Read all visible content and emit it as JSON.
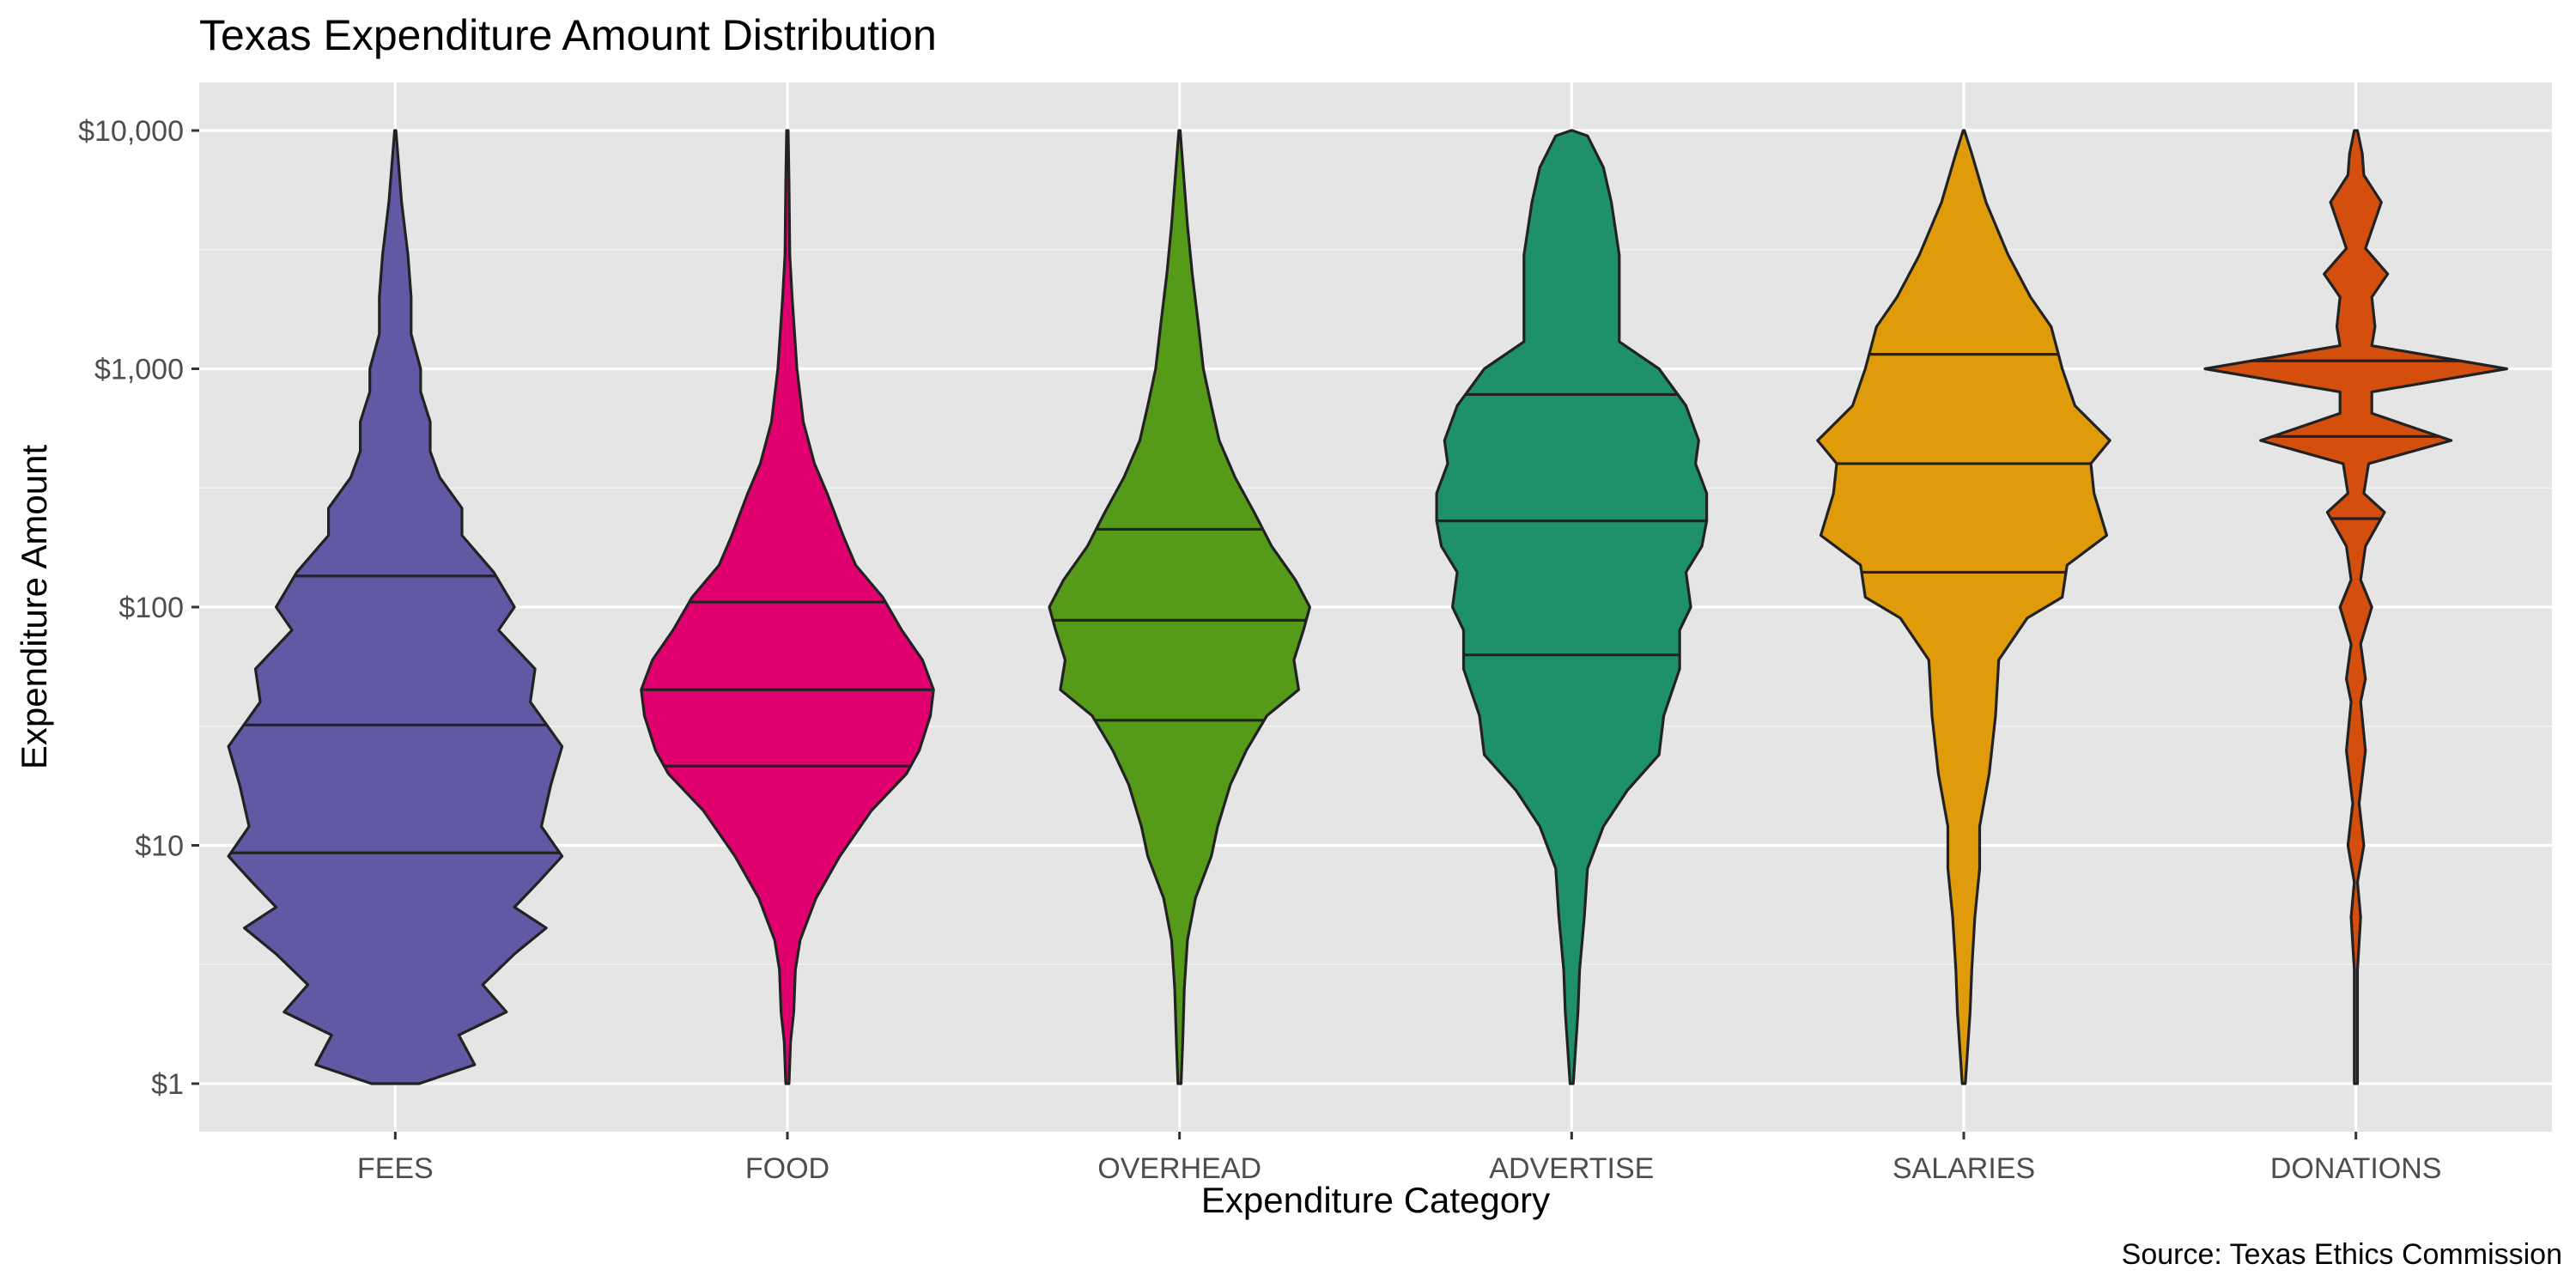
{
  "chart_data": {
    "type": "violin",
    "title": "Texas Expenditure Amount Distribution",
    "xlabel": "Expenditure Category",
    "ylabel": "Expenditure Amount",
    "caption": "Source: Texas Ethics Commission",
    "y_scale": "log10",
    "ylim": [
      1,
      10000
    ],
    "y_ticks": [
      1,
      10,
      100,
      1000,
      10000
    ],
    "y_tick_labels": [
      "$1",
      "$10",
      "$100",
      "$1,000",
      "$10,000"
    ],
    "grid": true,
    "legend": "none",
    "categories": [
      "FEES",
      "FOOD",
      "OVERHEAD",
      "ADVERTISE",
      "SALARIES",
      "DONATIONS"
    ],
    "series": [
      {
        "category": "FEES",
        "color": "#6159a4",
        "quantiles": [
          9.3,
          32,
          135
        ],
        "density": [
          [
            1,
            0.15
          ],
          [
            1.2,
            0.5
          ],
          [
            1.6,
            0.4
          ],
          [
            2,
            0.7
          ],
          [
            2.6,
            0.55
          ],
          [
            3.5,
            0.75
          ],
          [
            4.5,
            0.95
          ],
          [
            5.5,
            0.75
          ],
          [
            7,
            0.9
          ],
          [
            9,
            1.05
          ],
          [
            12,
            0.92
          ],
          [
            18,
            0.98
          ],
          [
            26,
            1.05
          ],
          [
            40,
            0.85
          ],
          [
            55,
            0.88
          ],
          [
            80,
            0.65
          ],
          [
            100,
            0.75
          ],
          [
            140,
            0.62
          ],
          [
            200,
            0.42
          ],
          [
            260,
            0.42
          ],
          [
            350,
            0.28
          ],
          [
            450,
            0.22
          ],
          [
            600,
            0.22
          ],
          [
            800,
            0.16
          ],
          [
            1000,
            0.16
          ],
          [
            1400,
            0.1
          ],
          [
            2000,
            0.1
          ],
          [
            3000,
            0.08
          ],
          [
            5000,
            0.04
          ],
          [
            10000,
            0
          ]
        ]
      },
      {
        "category": "FOOD",
        "color": "#e0006e",
        "quantiles": [
          21.5,
          45,
          105
        ],
        "density": [
          [
            1,
            0.01
          ],
          [
            1.5,
            0.02
          ],
          [
            2,
            0.04
          ],
          [
            3,
            0.05
          ],
          [
            4,
            0.08
          ],
          [
            6,
            0.18
          ],
          [
            9,
            0.33
          ],
          [
            14,
            0.53
          ],
          [
            20,
            0.75
          ],
          [
            25,
            0.83
          ],
          [
            35,
            0.9
          ],
          [
            45,
            0.92
          ],
          [
            60,
            0.85
          ],
          [
            80,
            0.72
          ],
          [
            110,
            0.6
          ],
          [
            150,
            0.43
          ],
          [
            200,
            0.35
          ],
          [
            300,
            0.25
          ],
          [
            400,
            0.17
          ],
          [
            600,
            0.1
          ],
          [
            1000,
            0.06
          ],
          [
            2000,
            0.03
          ],
          [
            3000,
            0.015
          ],
          [
            6000,
            0.01
          ],
          [
            10000,
            0.005
          ]
        ]
      },
      {
        "category": "OVERHEAD",
        "color": "#559a18",
        "quantiles": [
          33.5,
          88,
          212
        ],
        "density": [
          [
            1,
            0.01
          ],
          [
            1.5,
            0.02
          ],
          [
            2.5,
            0.03
          ],
          [
            4,
            0.05
          ],
          [
            6,
            0.1
          ],
          [
            9,
            0.2
          ],
          [
            12,
            0.24
          ],
          [
            18,
            0.32
          ],
          [
            25,
            0.42
          ],
          [
            35,
            0.55
          ],
          [
            45,
            0.75
          ],
          [
            60,
            0.72
          ],
          [
            80,
            0.78
          ],
          [
            100,
            0.82
          ],
          [
            130,
            0.73
          ],
          [
            180,
            0.58
          ],
          [
            250,
            0.47
          ],
          [
            350,
            0.35
          ],
          [
            500,
            0.25
          ],
          [
            700,
            0.2
          ],
          [
            1000,
            0.15
          ],
          [
            1500,
            0.12
          ],
          [
            2500,
            0.08
          ],
          [
            4000,
            0.05
          ],
          [
            10000,
            0
          ]
        ]
      },
      {
        "category": "ADVERTISE",
        "color": "#1e906c",
        "quantiles": [
          63,
          230,
          780
        ],
        "density": [
          [
            1,
            0.01
          ],
          [
            2,
            0.04
          ],
          [
            3,
            0.05
          ],
          [
            5,
            0.08
          ],
          [
            8,
            0.1
          ],
          [
            12,
            0.2
          ],
          [
            17,
            0.35
          ],
          [
            24,
            0.55
          ],
          [
            35,
            0.58
          ],
          [
            55,
            0.68
          ],
          [
            80,
            0.68
          ],
          [
            100,
            0.75
          ],
          [
            140,
            0.72
          ],
          [
            180,
            0.82
          ],
          [
            230,
            0.85
          ],
          [
            300,
            0.85
          ],
          [
            400,
            0.78
          ],
          [
            500,
            0.8
          ],
          [
            700,
            0.72
          ],
          [
            1000,
            0.55
          ],
          [
            1300,
            0.3
          ],
          [
            2000,
            0.3
          ],
          [
            3000,
            0.3
          ],
          [
            5000,
            0.25
          ],
          [
            7000,
            0.2
          ],
          [
            9500,
            0.1
          ],
          [
            10000,
            0
          ]
        ]
      },
      {
        "category": "SALARIES",
        "color": "#df9b09",
        "quantiles": [
          140,
          400,
          1150
        ],
        "density": [
          [
            1,
            0.01
          ],
          [
            2,
            0.04
          ],
          [
            3,
            0.05
          ],
          [
            5,
            0.07
          ],
          [
            8,
            0.1
          ],
          [
            12,
            0.1
          ],
          [
            20,
            0.16
          ],
          [
            35,
            0.2
          ],
          [
            60,
            0.22
          ],
          [
            90,
            0.4
          ],
          [
            110,
            0.62
          ],
          [
            150,
            0.65
          ],
          [
            200,
            0.9
          ],
          [
            300,
            0.82
          ],
          [
            400,
            0.8
          ],
          [
            500,
            0.92
          ],
          [
            700,
            0.7
          ],
          [
            1000,
            0.62
          ],
          [
            1500,
            0.55
          ],
          [
            2000,
            0.42
          ],
          [
            3000,
            0.28
          ],
          [
            5000,
            0.14
          ],
          [
            8000,
            0.05
          ],
          [
            10000,
            0
          ]
        ]
      },
      {
        "category": "DONATIONS",
        "color": "#d44f0e",
        "quantiles": [
          235,
          520,
          1080
        ],
        "density": [
          [
            1,
            0.01
          ],
          [
            3,
            0.01
          ],
          [
            5,
            0.03
          ],
          [
            7,
            0.01
          ],
          [
            10,
            0.05
          ],
          [
            15,
            0.02
          ],
          [
            25,
            0.06
          ],
          [
            40,
            0.03
          ],
          [
            50,
            0.06
          ],
          [
            70,
            0.03
          ],
          [
            100,
            0.1
          ],
          [
            130,
            0.03
          ],
          [
            180,
            0.06
          ],
          [
            250,
            0.18
          ],
          [
            300,
            0.05
          ],
          [
            400,
            0.08
          ],
          [
            500,
            0.6
          ],
          [
            650,
            0.1
          ],
          [
            800,
            0.1
          ],
          [
            1000,
            0.95
          ],
          [
            1250,
            0.1
          ],
          [
            1500,
            0.12
          ],
          [
            2000,
            0.1
          ],
          [
            2500,
            0.2
          ],
          [
            3200,
            0.06
          ],
          [
            5000,
            0.16
          ],
          [
            6500,
            0.05
          ],
          [
            8000,
            0.04
          ],
          [
            10000,
            0.01
          ]
        ]
      }
    ]
  }
}
